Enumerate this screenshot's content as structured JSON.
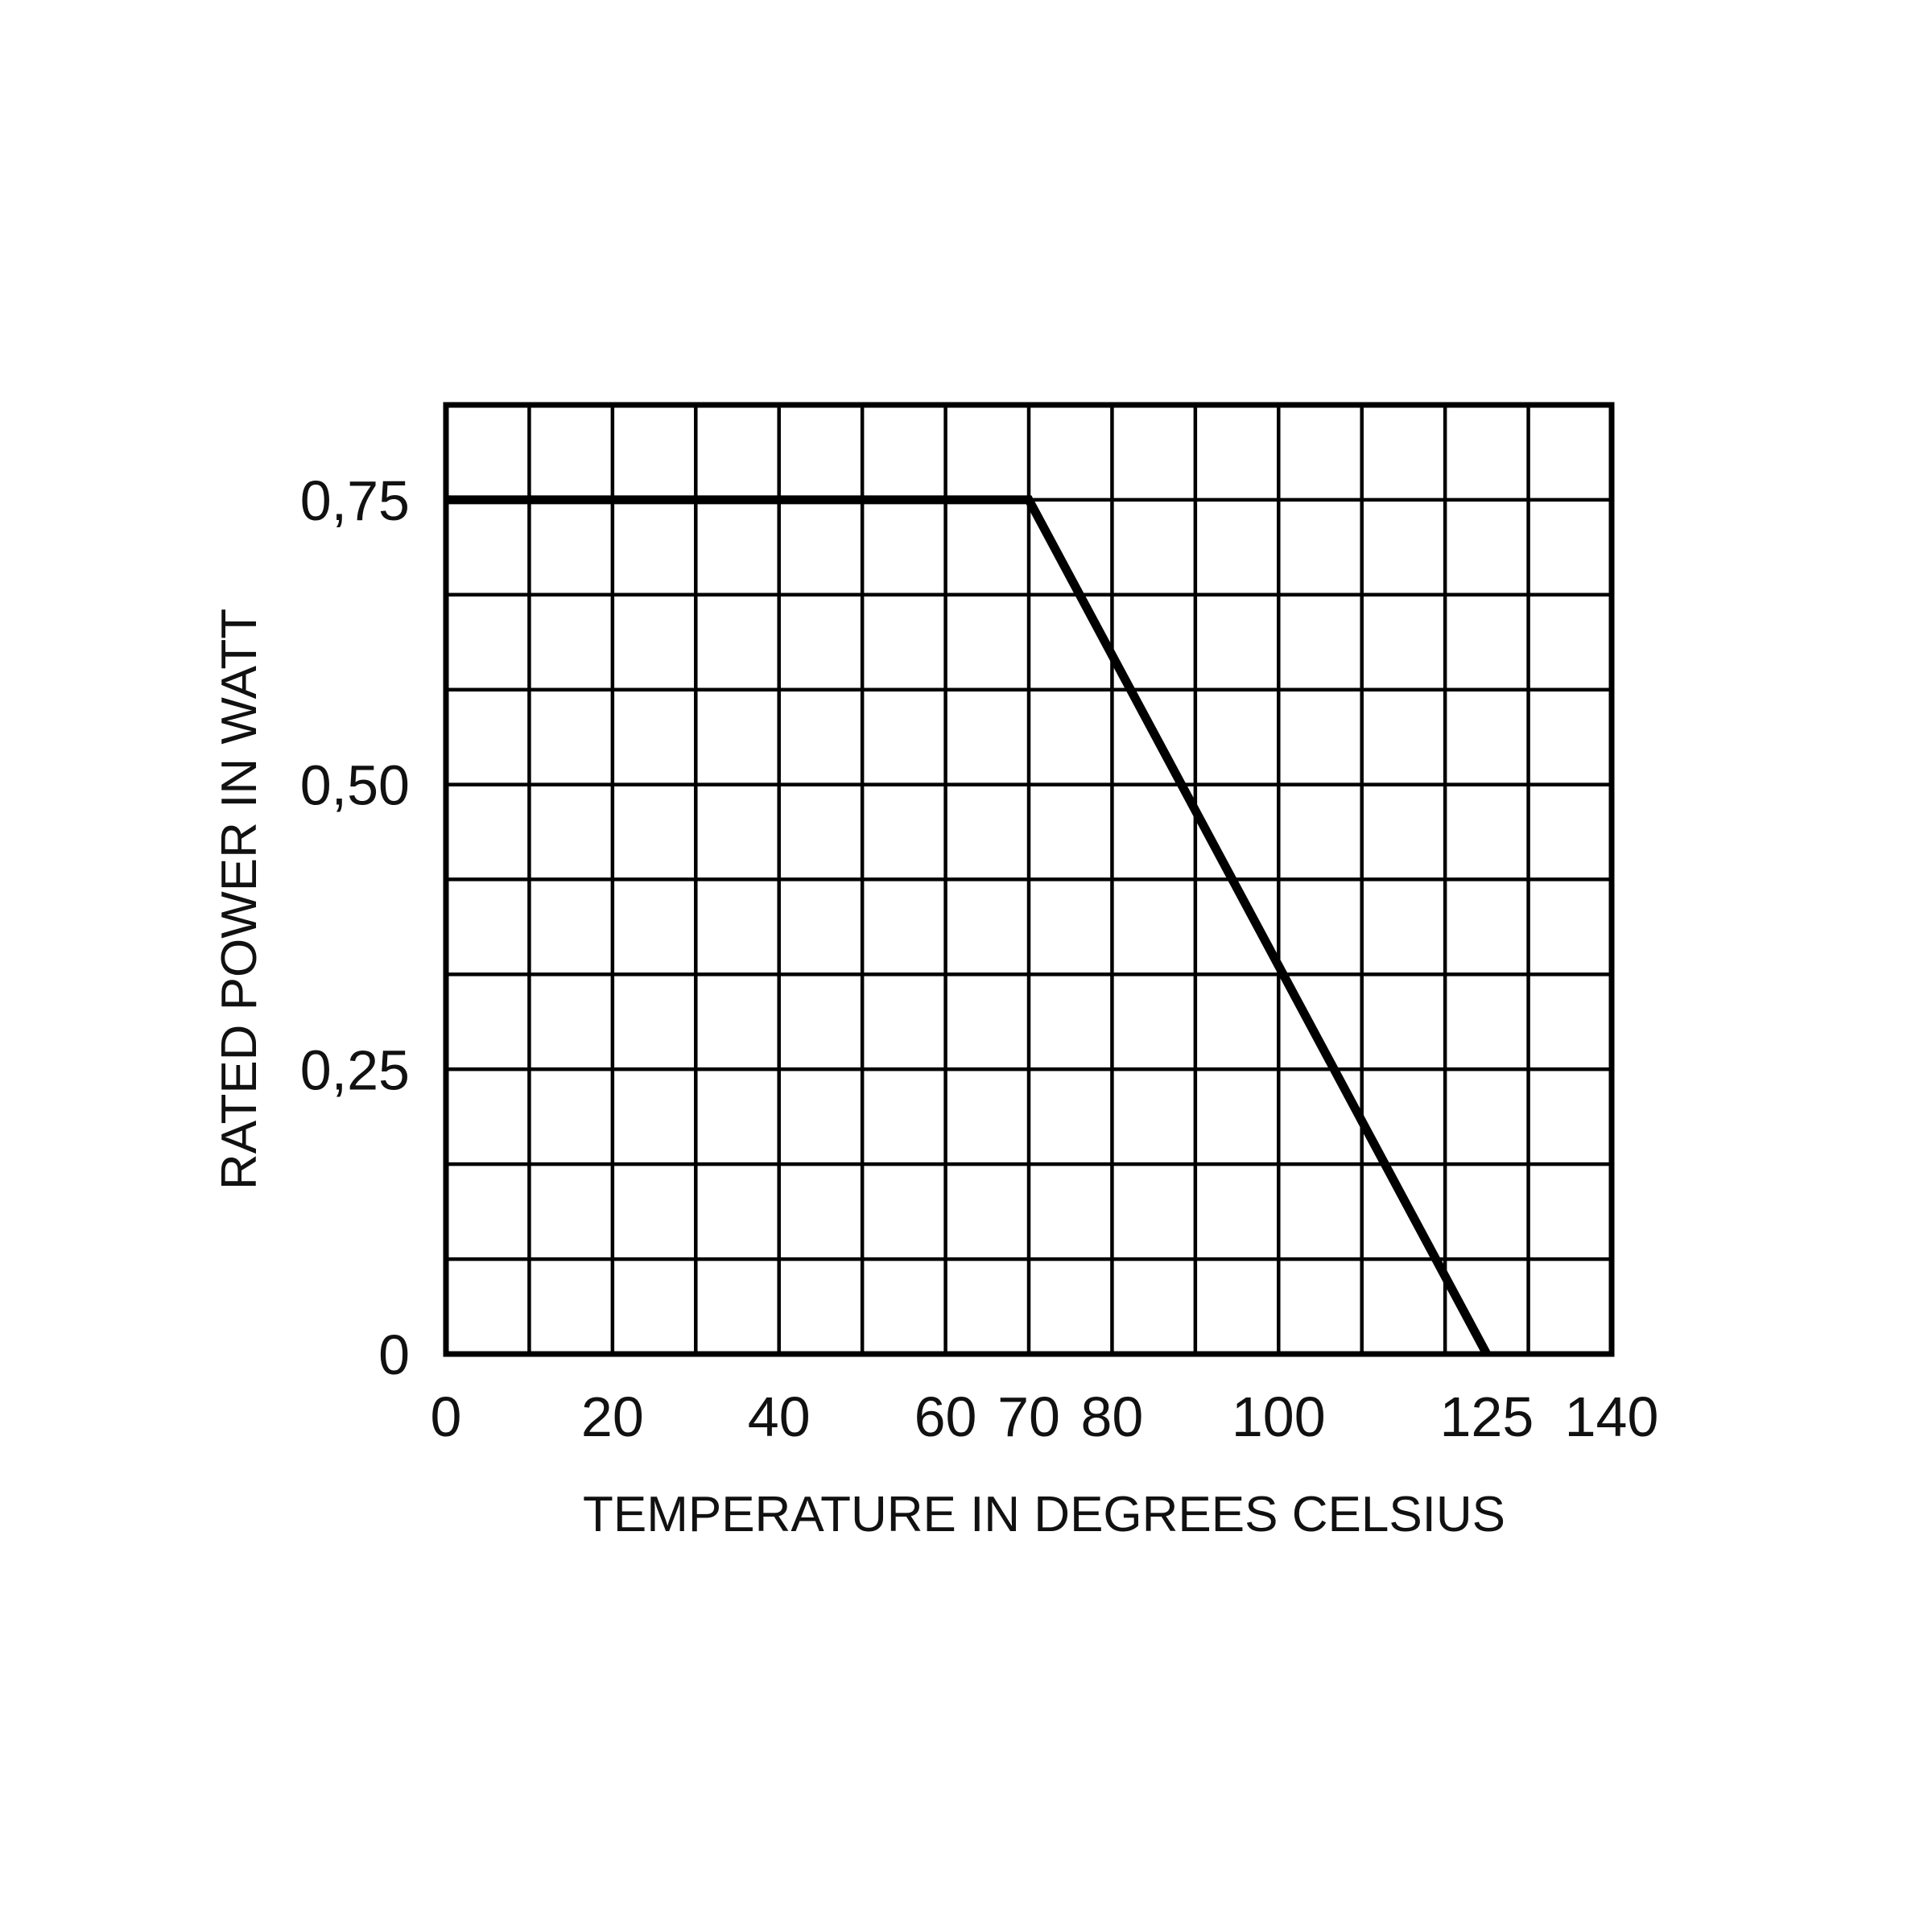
{
  "chart_data": {
    "type": "line",
    "x_label": "TEMPERATURE IN DEGREES CELSIUS",
    "y_label": "RATED POWER IN WATT",
    "series": [
      {
        "x": [
          0,
          70,
          125
        ],
        "values": [
          0.75,
          0.75,
          0
        ],
        "color": "#000000"
      }
    ],
    "xlim": [
      0,
      140
    ],
    "ylim": [
      0,
      0.8333
    ],
    "xticks": [
      0,
      20,
      40,
      60,
      70,
      80,
      100,
      125,
      140
    ],
    "yticks": [
      0,
      {
        "value": 0.25,
        "label": "0,25"
      },
      {
        "value": 0.5,
        "label": "0,50"
      },
      {
        "value": 0.75,
        "label": "0,75"
      }
    ],
    "xgrid": [
      0,
      10,
      20,
      30,
      40,
      50,
      60,
      70,
      80,
      90,
      100,
      110,
      120,
      130,
      140
    ],
    "ygrid": [
      0,
      0.0833,
      0.1667,
      0.25,
      0.3333,
      0.4167,
      0.5,
      0.5833,
      0.6667,
      0.75,
      0.8333
    ],
    "grid": true
  }
}
